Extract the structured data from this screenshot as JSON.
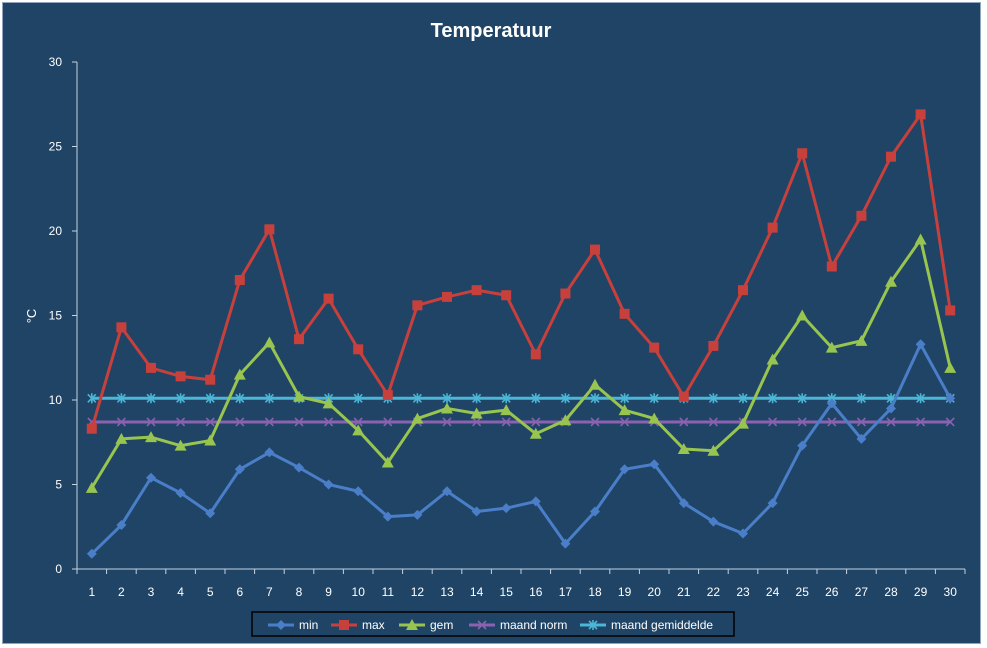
{
  "chart_data": {
    "type": "line",
    "title": "Temperatuur",
    "xlabel": "",
    "ylabel": "°C",
    "ylim": [
      0,
      30
    ],
    "yticks": [
      0,
      5,
      10,
      15,
      20,
      25,
      30
    ],
    "categories": [
      "1",
      "2",
      "3",
      "4",
      "5",
      "6",
      "7",
      "8",
      "9",
      "10",
      "11",
      "12",
      "13",
      "14",
      "15",
      "16",
      "17",
      "18",
      "19",
      "20",
      "21",
      "22",
      "23",
      "24",
      "25",
      "26",
      "27",
      "28",
      "29",
      "30"
    ],
    "grid": false,
    "legend": "bottom",
    "series": [
      {
        "name": "min",
        "color": "#4a7ec8",
        "marker": "diamond",
        "values": [
          0.9,
          2.6,
          5.4,
          4.5,
          3.3,
          5.9,
          6.9,
          6.0,
          5.0,
          4.6,
          3.1,
          3.2,
          4.6,
          3.4,
          3.6,
          4.0,
          1.5,
          3.4,
          5.9,
          6.2,
          3.9,
          2.8,
          2.1,
          3.9,
          7.3,
          9.8,
          7.7,
          9.5,
          13.3,
          10.1
        ]
      },
      {
        "name": "max",
        "color": "#c8403c",
        "marker": "square",
        "values": [
          8.3,
          14.3,
          11.9,
          11.4,
          11.2,
          17.1,
          20.1,
          13.6,
          16.0,
          13.0,
          10.3,
          15.6,
          16.1,
          16.5,
          16.2,
          12.7,
          16.3,
          18.9,
          15.1,
          13.1,
          10.2,
          13.2,
          16.5,
          20.2,
          24.6,
          17.9,
          20.9,
          24.4,
          26.9,
          15.3
        ]
      },
      {
        "name": "gem",
        "color": "#98c450",
        "marker": "triangle",
        "values": [
          4.8,
          7.7,
          7.8,
          7.3,
          7.6,
          11.5,
          13.4,
          10.2,
          9.8,
          8.2,
          6.3,
          8.9,
          9.5,
          9.2,
          9.4,
          8.0,
          8.8,
          10.9,
          9.4,
          8.9,
          7.1,
          7.0,
          8.6,
          12.4,
          15.0,
          13.1,
          13.5,
          17.0,
          19.5,
          11.9
        ]
      },
      {
        "name": "maand norm",
        "color": "#8a62b0",
        "marker": "x",
        "values": [
          8.7,
          8.7,
          8.7,
          8.7,
          8.7,
          8.7,
          8.7,
          8.7,
          8.7,
          8.7,
          8.7,
          8.7,
          8.7,
          8.7,
          8.7,
          8.7,
          8.7,
          8.7,
          8.7,
          8.7,
          8.7,
          8.7,
          8.7,
          8.7,
          8.7,
          8.7,
          8.7,
          8.7,
          8.7,
          8.7
        ]
      },
      {
        "name": "maand gemiddelde",
        "color": "#4bb6d6",
        "marker": "star",
        "values": [
          10.1,
          10.1,
          10.1,
          10.1,
          10.1,
          10.1,
          10.1,
          10.1,
          10.1,
          10.1,
          10.1,
          10.1,
          10.1,
          10.1,
          10.1,
          10.1,
          10.1,
          10.1,
          10.1,
          10.1,
          10.1,
          10.1,
          10.1,
          10.1,
          10.1,
          10.1,
          10.1,
          10.1,
          10.1,
          10.1
        ]
      }
    ]
  }
}
